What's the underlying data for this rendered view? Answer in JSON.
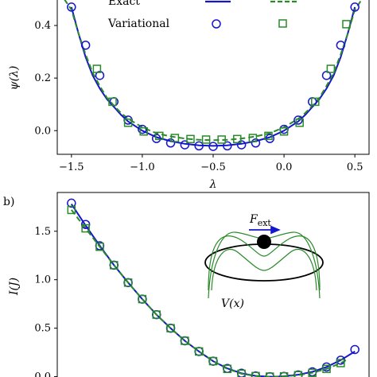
{
  "chart_data": [
    {
      "type": "line",
      "panel_label": "",
      "xlabel": "λ",
      "ylabel": "ψ(λ)",
      "xlim": [
        -1.6,
        0.6
      ],
      "ylim": [
        -0.09,
        0.5
      ],
      "xticks": [
        "−1.5",
        "−1.0",
        "−0.5",
        "0.0",
        "0.5"
      ],
      "xtick_values": [
        -1.5,
        -1.0,
        -0.5,
        0.0,
        0.5
      ],
      "yticks": [
        "0.0",
        "0.2",
        "0.4"
      ],
      "ytick_values": [
        0.0,
        0.2,
        0.4
      ],
      "legend": {
        "row1": "Exact",
        "row2": "Variational",
        "placement": "top-left"
      },
      "colors": {
        "series1": "#1515cc",
        "series2": "#2a8a2a"
      },
      "series": [
        {
          "kind": "exact",
          "x": [
            -1.5,
            -1.45,
            -1.4,
            -1.35,
            -1.3,
            -1.25,
            -1.2,
            -1.15,
            -1.1,
            -1.0,
            -0.9,
            -0.8,
            -0.7,
            -0.6,
            -0.5,
            -0.4,
            -0.3,
            -0.2,
            -0.1,
            0.0,
            0.1,
            0.15,
            0.2,
            0.25,
            0.3,
            0.35,
            0.4,
            0.45,
            0.5
          ],
          "y": [
            0.47,
            0.37,
            0.28,
            0.21,
            0.16,
            0.12,
            0.09,
            0.06,
            0.035,
            0.0,
            -0.025,
            -0.04,
            -0.05,
            -0.056,
            -0.058,
            -0.056,
            -0.05,
            -0.04,
            -0.025,
            0.0,
            0.035,
            0.06,
            0.09,
            0.12,
            0.16,
            0.21,
            0.28,
            0.37,
            0.47
          ]
        },
        {
          "kind": "exact",
          "x": [
            -1.55,
            -1.5,
            -1.45,
            -1.4,
            -1.35,
            -1.3,
            -1.25,
            -1.2,
            -1.15,
            -1.1,
            -1.0,
            -0.9,
            -0.8,
            -0.7,
            -0.6,
            -0.5,
            -0.4,
            -0.3,
            -0.2,
            -0.1,
            0.0,
            0.1,
            0.15,
            0.2,
            0.25,
            0.3,
            0.35,
            0.4,
            0.45,
            0.5,
            0.55
          ],
          "y": [
            0.5,
            0.46,
            0.37,
            0.29,
            0.22,
            0.17,
            0.125,
            0.095,
            0.067,
            0.045,
            0.013,
            -0.01,
            -0.022,
            -0.03,
            -0.035,
            -0.036,
            -0.035,
            -0.03,
            -0.022,
            -0.01,
            0.013,
            0.045,
            0.067,
            0.095,
            0.125,
            0.17,
            0.22,
            0.29,
            0.37,
            0.46,
            0.5
          ]
        },
        {
          "kind": "variational",
          "x": [
            -1.5,
            -1.4,
            -1.3,
            -1.2,
            -1.1,
            -1.0,
            -0.9,
            -0.8,
            -0.7,
            -0.6,
            -0.5,
            -0.4,
            -0.3,
            -0.2,
            -0.1,
            0.0,
            0.1,
            0.2,
            0.3,
            0.4,
            0.5
          ],
          "y": [
            0.47,
            0.325,
            0.21,
            0.11,
            0.04,
            0.005,
            -0.03,
            -0.047,
            -0.054,
            -0.058,
            -0.06,
            -0.058,
            -0.054,
            -0.047,
            -0.03,
            0.005,
            0.04,
            0.11,
            0.21,
            0.325,
            0.47
          ]
        },
        {
          "kind": "variational",
          "x": [
            -1.32,
            -1.21,
            -1.1,
            -0.99,
            -0.88,
            -0.77,
            -0.66,
            -0.55,
            -0.44,
            -0.33,
            -0.22,
            -0.11,
            0.0,
            0.11,
            0.22,
            0.33,
            0.44
          ],
          "y": [
            0.235,
            0.11,
            0.03,
            -0.003,
            -0.02,
            -0.028,
            -0.032,
            -0.034,
            -0.034,
            -0.032,
            -0.028,
            -0.02,
            -0.003,
            0.03,
            0.11,
            0.235,
            0.405
          ]
        }
      ]
    },
    {
      "type": "line",
      "panel_label": "b)",
      "xlabel": "",
      "ylabel": "I(J)",
      "xlim": [
        -1.6,
        0.6
      ],
      "ylim": [
        -0.02,
        1.9
      ],
      "xticks": [],
      "xtick_values": [],
      "yticks": [
        "0.0",
        "0.5",
        "1.0",
        "1.5"
      ],
      "ytick_values": [
        0.0,
        0.5,
        1.0,
        1.5
      ],
      "inset": {
        "force_label": "F",
        "force_sub": "ext",
        "potential_label": "V(x)"
      },
      "colors": {
        "series1": "#1515cc",
        "series2": "#2a8a2a",
        "inset_ring": "#000000"
      },
      "series": [
        {
          "kind": "exact",
          "x": [
            -1.5,
            -1.4,
            -1.3,
            -1.2,
            -1.1,
            -1.0,
            -0.9,
            -0.8,
            -0.7,
            -0.6,
            -0.5,
            -0.4,
            -0.3,
            -0.2,
            -0.1,
            -0.05,
            0.0,
            0.1,
            0.2,
            0.3,
            0.4,
            0.5
          ],
          "y": [
            1.78,
            1.56,
            1.35,
            1.15,
            0.97,
            0.8,
            0.64,
            0.5,
            0.37,
            0.26,
            0.16,
            0.085,
            0.035,
            0.008,
            0.0,
            0.0,
            0.005,
            0.02,
            0.05,
            0.1,
            0.17,
            0.26
          ]
        },
        {
          "kind": "exact",
          "x": [
            -1.5,
            -1.4,
            -1.3,
            -1.2,
            -1.1,
            -1.0,
            -0.9,
            -0.8,
            -0.7,
            -0.6,
            -0.5,
            -0.4,
            -0.3,
            -0.2,
            -0.1,
            0.0,
            0.1,
            0.2,
            0.3,
            0.4,
            0.45
          ],
          "y": [
            1.72,
            1.53,
            1.34,
            1.15,
            0.97,
            0.8,
            0.64,
            0.5,
            0.37,
            0.26,
            0.16,
            0.08,
            0.03,
            0.006,
            0.0,
            0.003,
            0.015,
            0.04,
            0.08,
            0.14,
            0.18
          ]
        },
        {
          "kind": "variational",
          "x": [
            -1.5,
            -1.4,
            -1.3,
            -1.2,
            -1.1,
            -1.0,
            -0.9,
            -0.8,
            -0.7,
            -0.6,
            -0.5,
            -0.4,
            -0.3,
            -0.2,
            -0.1,
            0.0,
            0.1,
            0.2,
            0.3,
            0.4,
            0.5
          ],
          "y": [
            1.79,
            1.57,
            1.35,
            1.15,
            0.97,
            0.8,
            0.64,
            0.5,
            0.37,
            0.26,
            0.16,
            0.085,
            0.035,
            0.008,
            0.0,
            0.003,
            0.018,
            0.05,
            0.1,
            0.17,
            0.28
          ]
        },
        {
          "kind": "variational",
          "x": [
            -1.5,
            -1.4,
            -1.3,
            -1.2,
            -1.1,
            -1.0,
            -0.9,
            -0.8,
            -0.7,
            -0.6,
            -0.5,
            -0.4,
            -0.3,
            -0.2,
            -0.1,
            0.0,
            0.1,
            0.2,
            0.3,
            0.4
          ],
          "y": [
            1.72,
            1.53,
            1.34,
            1.15,
            0.97,
            0.8,
            0.64,
            0.5,
            0.37,
            0.26,
            0.16,
            0.08,
            0.03,
            0.006,
            0.0,
            0.003,
            0.015,
            0.04,
            0.08,
            0.14
          ]
        }
      ]
    }
  ]
}
